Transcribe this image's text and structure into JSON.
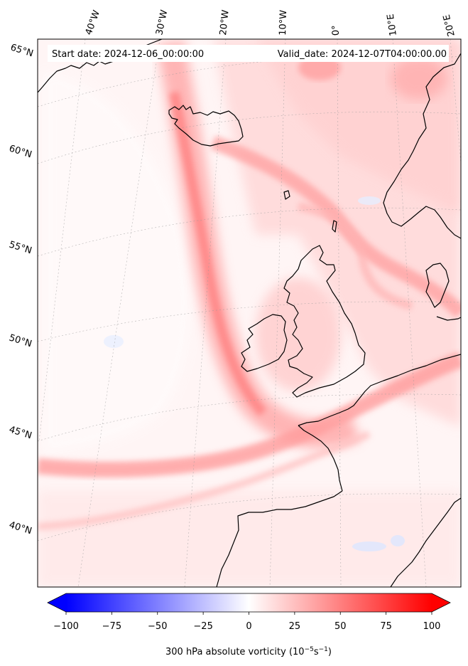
{
  "header": {
    "start_label": "Start date: 2024-12-06_00:00:00",
    "valid_label": "Valid_date: 2024-12-07T04:00:00.00"
  },
  "map": {
    "variable": "300 hPa absolute vorticity",
    "projection_note": "conic",
    "lon_labels": [
      "40°W",
      "30°W",
      "20°W",
      "10°W",
      "0°",
      "10°E",
      "20°E"
    ],
    "lat_labels": [
      "65°N",
      "60°N",
      "55°N",
      "50°N",
      "45°N",
      "40°N"
    ],
    "colors": {
      "negative": "#0000ff",
      "zero": "#ffffff",
      "positive": "#ff0000",
      "coast": "#000000"
    }
  },
  "colorbar": {
    "label_main": "300 hPa absolute vorticity (10",
    "exp1": "−5",
    "mid": "s",
    "exp2": "−1",
    "close": ")",
    "min": -100,
    "max": 100,
    "ticks": [
      "−100",
      "−75",
      "−50",
      "−25",
      "0",
      "25",
      "50",
      "75",
      "100"
    ],
    "extend": "both",
    "cmap": "bwr"
  }
}
